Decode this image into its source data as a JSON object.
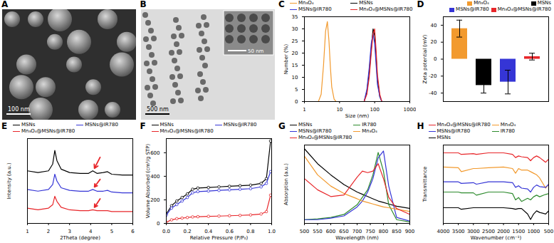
{
  "images": [
    {
      "panel": "A",
      "scale_bar": "100 nm"
    },
    {
      "panel": "B",
      "scale_bar": "500 nm",
      "inset_scale_bar": "50 nm"
    }
  ],
  "chart_data": [
    {
      "panel": "C",
      "type": "line",
      "x_label": "Size (nm)",
      "y_label": "Number (%)",
      "log": "x",
      "xlim": [
        1,
        1000
      ],
      "xticks": [
        1,
        10,
        100,
        1000
      ],
      "ylim": [
        0,
        35
      ],
      "yticks": [
        0,
        5,
        10,
        15,
        20,
        25,
        30,
        35
      ],
      "legend": "top-left",
      "series": [
        {
          "name": "Mn₃O₄",
          "color": "#f29a2e",
          "x": [
            2.5,
            3,
            3.5,
            4,
            4.5,
            5,
            5.5,
            6,
            7,
            8
          ],
          "values": [
            0,
            3,
            15,
            29,
            33,
            25,
            14,
            6,
            1,
            0
          ]
        },
        {
          "name": "MSNs",
          "color": "#000000",
          "x": [
            50,
            60,
            70,
            80,
            90,
            100,
            110,
            120,
            140,
            160
          ],
          "values": [
            0,
            4,
            12,
            22,
            30,
            27,
            18,
            9,
            2,
            0
          ]
        },
        {
          "name": "MSNs@IR780",
          "color": "#3535d6",
          "x": [
            50,
            60,
            70,
            80,
            90,
            100,
            110,
            120,
            140,
            160
          ],
          "values": [
            0,
            5,
            14,
            24,
            28,
            24,
            15,
            7,
            2,
            0
          ]
        },
        {
          "name": "Mn₃O₄@MSNs@IR780",
          "color": "#e8262a",
          "x": [
            50,
            60,
            70,
            80,
            90,
            100,
            110,
            120,
            140,
            160
          ],
          "values": [
            0,
            3,
            10,
            20,
            28,
            30,
            21,
            11,
            3,
            0
          ]
        }
      ]
    },
    {
      "panel": "D",
      "type": "bar",
      "y_label": "Zeta potential (mV)",
      "ylim": [
        -50,
        50
      ],
      "yticks": [
        -40,
        -20,
        0,
        20,
        40
      ],
      "legend": "top-right",
      "tick_labels": "y",
      "categories": [
        "Mn₃O₄",
        "MSNs",
        "MSNs@IR780",
        "Mn₃O₄@MSNs@IR780"
      ],
      "values": [
        36,
        -31,
        -27,
        3
      ],
      "errors": [
        10,
        9,
        14,
        4
      ],
      "colors": [
        "#f29a2e",
        "#000000",
        "#3535d6",
        "#e8262a"
      ]
    },
    {
      "panel": "E",
      "type": "line",
      "x_label": "2Theta (degree)",
      "y_label": "Intensity (a.u.)",
      "xlim": [
        1,
        6
      ],
      "xticks": [
        1,
        2,
        3,
        4,
        5,
        6
      ],
      "ylim": [
        0,
        100
      ],
      "tick_labels": "x",
      "legend": "top-left",
      "x": [
        1,
        1.5,
        2,
        2.2,
        2.3,
        2.4,
        2.6,
        3,
        3.5,
        3.9,
        4.1,
        4.3,
        4.6,
        4.8,
        5,
        5.5,
        6
      ],
      "series": [
        {
          "name": "MSNs",
          "color": "#000000",
          "values": [
            62,
            60,
            62,
            70,
            86,
            74,
            64,
            60,
            59,
            59,
            62,
            59,
            60,
            61,
            58,
            57,
            57
          ]
        },
        {
          "name": "MSNs@IR780",
          "color": "#3535d6",
          "values": [
            40,
            38,
            40,
            46,
            58,
            50,
            42,
            39,
            38,
            38,
            40,
            38,
            38,
            39,
            37,
            36,
            36
          ]
        },
        {
          "name": "Mn₃O₄@MSNs@IR780",
          "color": "#e8262a",
          "values": [
            18,
            16,
            18,
            22,
            32,
            26,
            19,
            16,
            15,
            15,
            16,
            15,
            15,
            15,
            14,
            14,
            14
          ]
        }
      ],
      "annotations": [
        {
          "x1": 4.45,
          "y1": 78,
          "x2": 4.18,
          "y2": 65,
          "color": "#e8262a"
        },
        {
          "x1": 4.45,
          "y1": 52,
          "x2": 4.18,
          "y2": 43,
          "color": "#e8262a"
        },
        {
          "x1": 4.45,
          "y1": 29,
          "x2": 4.18,
          "y2": 19,
          "color": "#e8262a"
        }
      ]
    },
    {
      "panel": "F",
      "type": "line",
      "x_label": "Relative Pressure (P/P₀)",
      "y_label": "Volume Absorbed (cm³/g STP)",
      "xlim": [
        0,
        1
      ],
      "xticks": [
        {
          "value": 0,
          "label": "0.0"
        },
        0.2,
        0.4,
        0.6,
        0.8,
        {
          "value": 1,
          "label": "1.0"
        }
      ],
      "ylim": [
        0,
        720
      ],
      "yticks": [
        0,
        200,
        400,
        600
      ],
      "legend": "top-left",
      "x": [
        0,
        0.05,
        0.1,
        0.15,
        0.2,
        0.25,
        0.3,
        0.4,
        0.5,
        0.6,
        0.7,
        0.8,
        0.9,
        0.95,
        0.99
      ],
      "series": [
        {
          "name": "MSNs",
          "color": "#000000",
          "marker": "circle",
          "values": [
            80,
            150,
            190,
            220,
            250,
            290,
            300,
            305,
            310,
            315,
            320,
            325,
            340,
            380,
            700
          ]
        },
        {
          "name": "MSNs@IR780",
          "color": "#3535d6",
          "marker": "circle",
          "values": [
            70,
            130,
            160,
            190,
            220,
            260,
            270,
            275,
            280,
            285,
            290,
            295,
            310,
            340,
            440
          ]
        },
        {
          "name": "Mn₃O₄@MSNs@IR780",
          "color": "#e8262a",
          "marker": "circle",
          "values": [
            10,
            30,
            40,
            45,
            50,
            55,
            57,
            60,
            62,
            65,
            68,
            72,
            80,
            100,
            240
          ]
        }
      ]
    },
    {
      "panel": "G",
      "type": "line",
      "x_label": "Wavelength (nm)",
      "y_label": "Absorption (a.u.)",
      "xlim": [
        500,
        900
      ],
      "xticks": [
        500,
        550,
        600,
        650,
        700,
        750,
        800,
        850,
        900
      ],
      "ylim": [
        0,
        1.05
      ],
      "tick_labels": "x",
      "legend": "top-left",
      "x": [
        500,
        550,
        600,
        650,
        700,
        720,
        740,
        760,
        780,
        800,
        820,
        850,
        900
      ],
      "series": [
        {
          "name": "MSNs",
          "color": "#000000",
          "values": [
            1.0,
            0.8,
            0.65,
            0.52,
            0.42,
            0.39,
            0.36,
            0.33,
            0.3,
            0.28,
            0.26,
            0.23,
            0.2
          ]
        },
        {
          "name": "IR780",
          "color": "#2e8b2e",
          "values": [
            0.05,
            0.06,
            0.08,
            0.12,
            0.25,
            0.35,
            0.45,
            0.65,
            0.95,
            0.7,
            0.25,
            0.05,
            0.02
          ]
        },
        {
          "name": "MSNs@IR780",
          "color": "#3535d6",
          "values": [
            0.05,
            0.05,
            0.07,
            0.1,
            0.22,
            0.3,
            0.42,
            0.6,
            0.88,
            0.97,
            0.5,
            0.08,
            0.03
          ]
        },
        {
          "name": "Mn₃O₄",
          "color": "#f29a2e",
          "values": [
            0.9,
            0.65,
            0.5,
            0.4,
            0.33,
            0.3,
            0.28,
            0.26,
            0.24,
            0.22,
            0.21,
            0.19,
            0.16
          ]
        },
        {
          "name": "Mn₃O₄@MSNs@IR780",
          "color": "#e8262a",
          "values": [
            0.6,
            0.45,
            0.36,
            0.38,
            0.62,
            0.7,
            0.68,
            0.7,
            0.8,
            0.6,
            0.35,
            0.2,
            0.12
          ]
        }
      ]
    },
    {
      "panel": "H",
      "type": "line",
      "x_label": "Wavenumber (cm⁻¹)",
      "y_label": "Transmittance",
      "xlim": [
        4000,
        500
      ],
      "xticks": [
        4000,
        3500,
        3000,
        2500,
        2000,
        1500,
        1000,
        500
      ],
      "ylim": [
        0,
        100
      ],
      "tick_labels": "x",
      "legend": "top-left",
      "x": [
        4000,
        3500,
        3400,
        3000,
        2900,
        2500,
        2000,
        1700,
        1600,
        1500,
        1400,
        1200,
        1100,
        1000,
        900,
        800,
        600,
        500
      ],
      "series": [
        {
          "name": "Mn₃O₄@MSNs@IR780",
          "color": "#e8262a",
          "values": [
            90,
            90,
            88,
            89,
            88,
            90,
            90,
            88,
            84,
            86,
            85,
            84,
            80,
            84,
            86,
            84,
            78,
            82
          ]
        },
        {
          "name": "Mn₃O₄",
          "color": "#f29a2e",
          "values": [
            72,
            71,
            66,
            70,
            70,
            71,
            72,
            70,
            64,
            70,
            68,
            68,
            66,
            64,
            62,
            58,
            45,
            50
          ]
        },
        {
          "name": "MSNs@IR780",
          "color": "#3535d6",
          "values": [
            53,
            53,
            51,
            52,
            50,
            53,
            53,
            52,
            46,
            48,
            45,
            44,
            40,
            46,
            49,
            47,
            46,
            50
          ]
        },
        {
          "name": "IR780",
          "color": "#2e8b2e",
          "values": [
            40,
            40,
            39,
            39,
            36,
            40,
            40,
            38,
            30,
            33,
            28,
            32,
            30,
            34,
            36,
            34,
            37,
            38
          ]
        },
        {
          "name": "MSNs",
          "color": "#000000",
          "values": [
            20,
            20,
            18,
            20,
            20,
            20,
            20,
            19,
            18,
            19,
            19,
            12,
            5,
            12,
            16,
            14,
            12,
            16
          ]
        }
      ]
    }
  ]
}
